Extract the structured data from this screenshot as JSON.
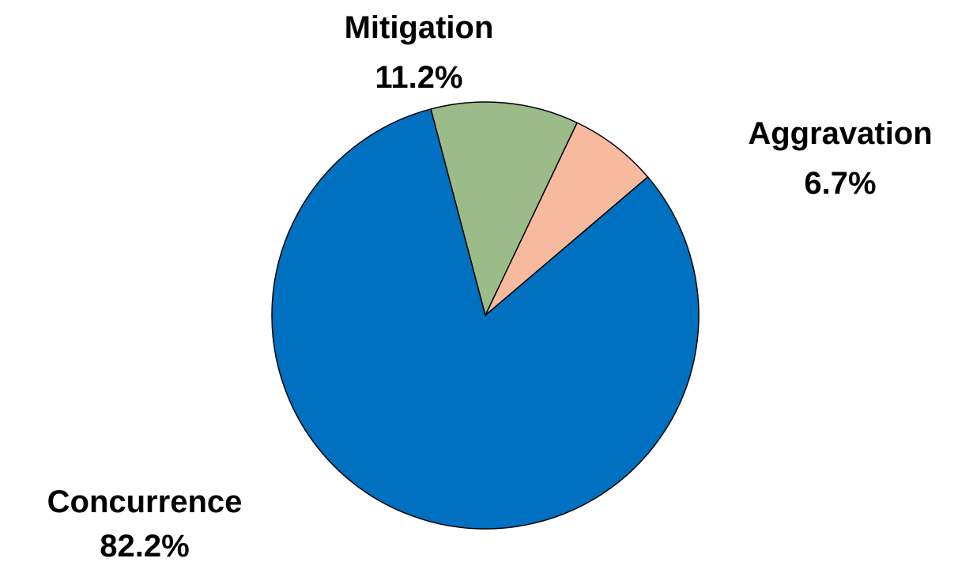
{
  "chart_data": {
    "type": "pie",
    "title": "",
    "slices": [
      {
        "label": "Mitigation",
        "value": 11.2,
        "value_label": "11.2%",
        "color": "#9BBB88"
      },
      {
        "label": "Aggravation",
        "value": 6.7,
        "value_label": "6.7%",
        "color": "#F8BA9E"
      },
      {
        "label": "Concurrence",
        "value": 82.2,
        "value_label": "82.2%",
        "color": "#0070C0"
      }
    ],
    "legend": "none",
    "labels_outside": true
  }
}
